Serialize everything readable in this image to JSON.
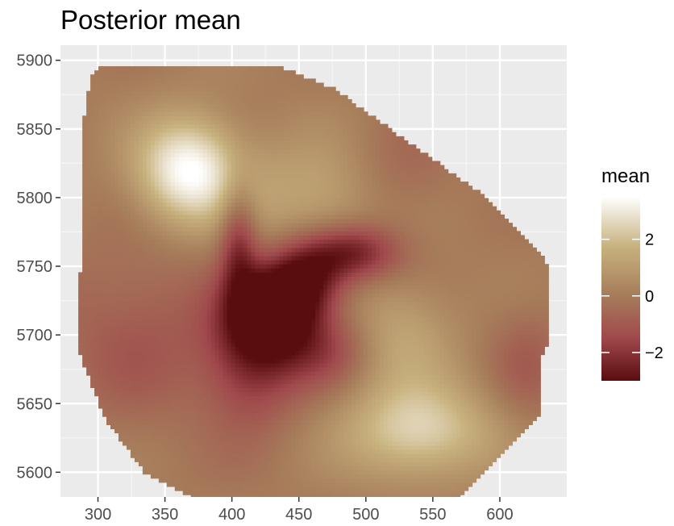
{
  "chart_data": {
    "type": "heatmap",
    "title": "Posterior mean",
    "xlabel": "",
    "ylabel": "",
    "xlim": [
      272,
      650
    ],
    "ylim": [
      5582,
      5911
    ],
    "x_ticks": [
      300,
      350,
      400,
      450,
      500,
      550,
      600
    ],
    "y_ticks": [
      5600,
      5650,
      5700,
      5750,
      5800,
      5850,
      5900
    ],
    "grid": true,
    "legend": {
      "title": "mean",
      "placement": "right",
      "range": [
        -3.0,
        3.5
      ],
      "ticks": [
        2,
        0,
        -2
      ],
      "tick_labels": [
        "2",
        "0",
        "−2"
      ],
      "colors": {
        "low": "#5a0d0f",
        "mid_low": "#a0484c",
        "mid": "#a67c5a",
        "mid_high": "#c8b27e",
        "high": "#ffffff"
      }
    },
    "domain_polygon": [
      [
        295,
        5890
      ],
      [
        305,
        5896
      ],
      [
        435,
        5896
      ],
      [
        475,
        5880
      ],
      [
        590,
        5800
      ],
      [
        630,
        5760
      ],
      [
        638,
        5745
      ],
      [
        638,
        5700
      ],
      [
        630,
        5680
      ],
      [
        630,
        5640
      ],
      [
        570,
        5582
      ],
      [
        370,
        5582
      ],
      [
        335,
        5600
      ],
      [
        305,
        5640
      ],
      [
        285,
        5690
      ],
      [
        285,
        5735
      ],
      [
        290,
        5760
      ],
      [
        290,
        5860
      ]
    ],
    "features": [
      {
        "x": 368,
        "y": 5820,
        "sx": 28,
        "sy": 28,
        "value": 3.5
      },
      {
        "x": 540,
        "y": 5630,
        "sx": 40,
        "sy": 25,
        "value": 2.5
      },
      {
        "x": 470,
        "y": 5800,
        "sx": 45,
        "sy": 30,
        "value": 1.5
      },
      {
        "x": 525,
        "y": 5700,
        "sx": 30,
        "sy": 30,
        "value": 1.3
      },
      {
        "x": 430,
        "y": 5718,
        "sx": 22,
        "sy": 22,
        "value": -3.0
      },
      {
        "x": 455,
        "y": 5740,
        "sx": 20,
        "sy": 20,
        "value": -2.8
      },
      {
        "x": 490,
        "y": 5760,
        "sx": 25,
        "sy": 15,
        "value": -2.7
      },
      {
        "x": 405,
        "y": 5770,
        "sx": 10,
        "sy": 30,
        "value": -2.2
      },
      {
        "x": 415,
        "y": 5685,
        "sx": 25,
        "sy": 35,
        "value": -2.2
      },
      {
        "x": 470,
        "y": 5690,
        "sx": 25,
        "sy": 20,
        "value": -1.6
      },
      {
        "x": 330,
        "y": 5700,
        "sx": 45,
        "sy": 45,
        "value": -1.0
      },
      {
        "x": 620,
        "y": 5680,
        "sx": 20,
        "sy": 30,
        "value": -0.8
      },
      {
        "x": 520,
        "y": 5810,
        "sx": 30,
        "sy": 30,
        "value": -1.0
      }
    ]
  }
}
